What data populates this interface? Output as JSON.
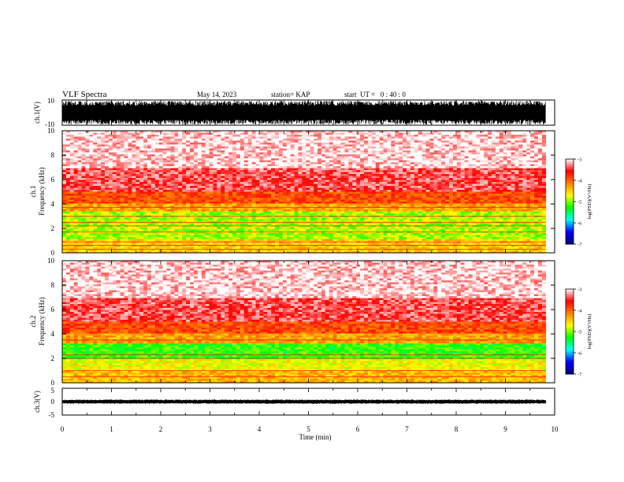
{
  "header": {
    "title": "VLF Spectra",
    "date": "May 14, 2023",
    "station": "station= KAP",
    "start": "start  UT =   0 : 40 : 0"
  },
  "colors": {
    "background": "#ffffff",
    "axes": "#000000",
    "colormap": [
      "#000080",
      "#0000ff",
      "#00ffff",
      "#00ff00",
      "#ffff00",
      "#ff8000",
      "#ff0000",
      "#ffffff"
    ]
  },
  "chart_data": [
    {
      "id": "ch1-waveform",
      "type": "line",
      "ylabel": "ch.1(V)",
      "ylim": [
        -10,
        10
      ],
      "yticks": [
        "10",
        "-10"
      ],
      "xlim": [
        0,
        10
      ],
      "series": [
        {
          "x_range": [
            0,
            9.82
          ],
          "amplitude": "saturated",
          "color": "#000000"
        }
      ]
    },
    {
      "id": "ch1-spectrogram",
      "type": "heatmap",
      "ylabel": "ch.1\nFrequency (kHz)",
      "ylim": [
        0,
        10
      ],
      "yticks": [
        "0",
        "2",
        "4",
        "6",
        "8",
        "10"
      ],
      "xlim": [
        0,
        10
      ],
      "x_data_end": 9.82,
      "bands": [
        {
          "from": 0.0,
          "to": 1.1,
          "level": -4.5
        },
        {
          "from": 1.1,
          "to": 3.4,
          "level": -4.9
        },
        {
          "from": 3.4,
          "to": 4.1,
          "level": -4.3
        },
        {
          "from": 4.1,
          "to": 5.0,
          "level": -3.9
        },
        {
          "from": 5.0,
          "to": 7.0,
          "level": -3.4
        },
        {
          "from": 7.0,
          "to": 10.0,
          "level": -3.1
        }
      ],
      "lines_khz": [
        0.3,
        0.6,
        0.9,
        1.7,
        2.2,
        2.5,
        3.0,
        3.7
      ],
      "colorbar": {
        "label": "log(PSD)(V²/Hz)",
        "min": -7,
        "max": -3,
        "ticks": [
          "-3",
          "-4",
          "-5",
          "-6",
          "-7"
        ]
      }
    },
    {
      "id": "ch2-spectrogram",
      "type": "heatmap",
      "ylabel": "ch.2\nFrequency (kHz)",
      "ylim": [
        0,
        10
      ],
      "yticks": [
        "0",
        "2",
        "4",
        "6",
        "8",
        "10"
      ],
      "xlim": [
        0,
        10
      ],
      "x_data_end": 9.82,
      "bands": [
        {
          "from": 0.0,
          "to": 1.0,
          "level": -4.4
        },
        {
          "from": 1.0,
          "to": 2.0,
          "level": -4.7
        },
        {
          "from": 2.0,
          "to": 3.2,
          "level": -5.2
        },
        {
          "from": 3.2,
          "to": 4.0,
          "level": -4.3
        },
        {
          "from": 4.0,
          "to": 5.0,
          "level": -3.9
        },
        {
          "from": 5.0,
          "to": 7.0,
          "level": -3.4
        },
        {
          "from": 7.0,
          "to": 10.0,
          "level": -3.1
        }
      ],
      "lines_khz": [
        0.5,
        1.0,
        2.0,
        2.3,
        3.5
      ],
      "colorbar": {
        "label": "log(PSD)(V²/Hz)",
        "min": -7,
        "max": -3,
        "ticks": [
          "-3",
          "-4",
          "-5",
          "-6",
          "-7"
        ]
      }
    },
    {
      "id": "ch3-waveform",
      "type": "line",
      "ylabel": "ch.3(V)",
      "ylim": [
        -5,
        5
      ],
      "yticks": [
        "5",
        "0",
        "-5"
      ],
      "xlim": [
        0,
        10
      ],
      "xlabel": "Time (min)",
      "xticks": [
        "0",
        "1",
        "2",
        "3",
        "4",
        "5",
        "6",
        "7",
        "8",
        "9",
        "10"
      ],
      "series": [
        {
          "x_range": [
            0,
            9.82
          ],
          "center": 0,
          "amplitude": 0.8,
          "color": "#000000"
        }
      ]
    }
  ]
}
